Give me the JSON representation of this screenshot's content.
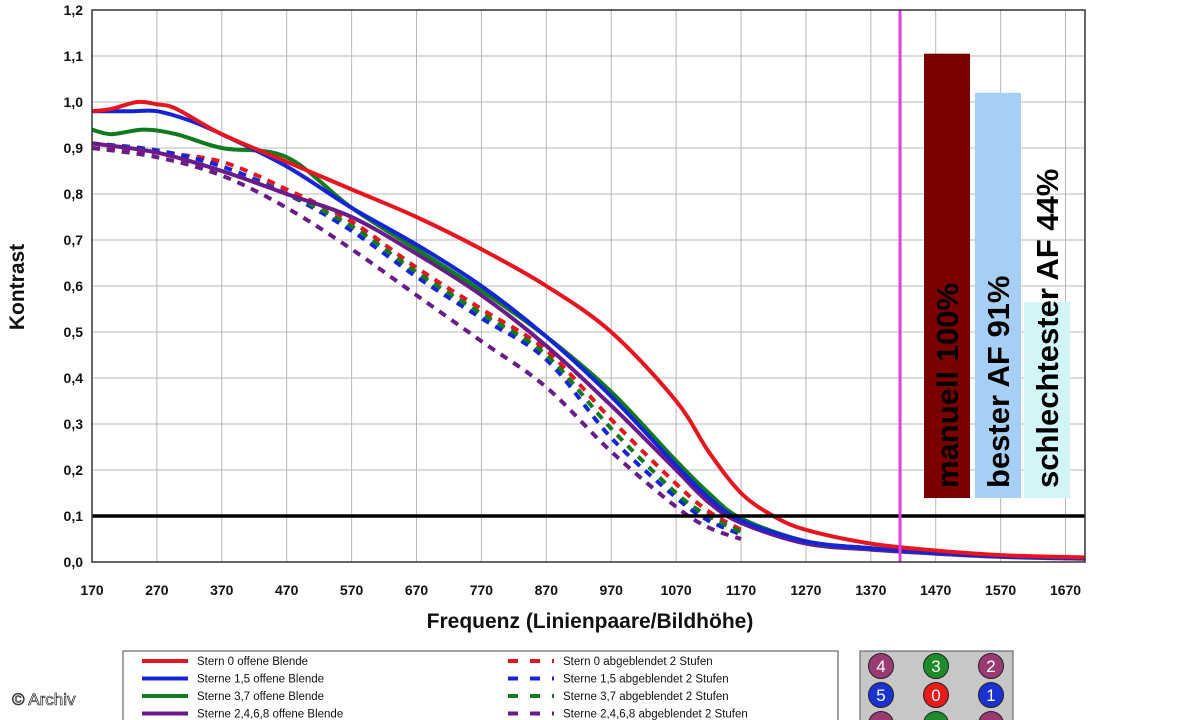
{
  "chart_data": {
    "type": "line",
    "xlabel": "Frequenz (Linienpaare/Bildhöhe)",
    "ylabel": "Kontrast",
    "xlim": [
      170,
      1700
    ],
    "ylim": [
      0,
      1.2
    ],
    "x_ticks": [
      "170",
      "270",
      "370",
      "470",
      "570",
      "670",
      "770",
      "870",
      "970",
      "1070",
      "1170",
      "1270",
      "1370",
      "1470",
      "1570",
      "1670"
    ],
    "y_ticks": [
      "0,0",
      "0,1",
      "0,2",
      "0,3",
      "0,4",
      "0,5",
      "0,6",
      "0,7",
      "0,8",
      "0,9",
      "1,0",
      "1,1",
      "1,2"
    ],
    "grid": true,
    "threshold_line": {
      "y": 0.1,
      "color": "#000000"
    },
    "marker_line": {
      "x": 1415,
      "color": "#e040e0"
    },
    "series": [
      {
        "name": "Stern 0 offene Blende",
        "color": "#e8141e",
        "style": "solid",
        "points": [
          [
            170,
            0.98
          ],
          [
            200,
            0.985
          ],
          [
            240,
            1.0
          ],
          [
            270,
            0.995
          ],
          [
            300,
            0.985
          ],
          [
            370,
            0.93
          ],
          [
            470,
            0.87
          ],
          [
            570,
            0.81
          ],
          [
            670,
            0.75
          ],
          [
            770,
            0.68
          ],
          [
            870,
            0.6
          ],
          [
            970,
            0.5
          ],
          [
            1070,
            0.35
          ],
          [
            1120,
            0.24
          ],
          [
            1170,
            0.15
          ],
          [
            1220,
            0.1
          ],
          [
            1270,
            0.07
          ],
          [
            1370,
            0.04
          ],
          [
            1470,
            0.025
          ],
          [
            1570,
            0.015
          ],
          [
            1700,
            0.01
          ]
        ]
      },
      {
        "name": "Sterne 1,5 offene Blende",
        "color": "#1424d8",
        "style": "solid",
        "points": [
          [
            170,
            0.98
          ],
          [
            230,
            0.98
          ],
          [
            270,
            0.98
          ],
          [
            320,
            0.96
          ],
          [
            370,
            0.93
          ],
          [
            470,
            0.86
          ],
          [
            570,
            0.77
          ],
          [
            670,
            0.69
          ],
          [
            770,
            0.6
          ],
          [
            870,
            0.49
          ],
          [
            970,
            0.36
          ],
          [
            1070,
            0.21
          ],
          [
            1120,
            0.14
          ],
          [
            1170,
            0.09
          ],
          [
            1270,
            0.045
          ],
          [
            1370,
            0.03
          ],
          [
            1470,
            0.02
          ],
          [
            1570,
            0.012
          ],
          [
            1700,
            0.008
          ]
        ]
      },
      {
        "name": "Sterne 3,7 offene Blende",
        "color": "#0f7a1e",
        "style": "solid",
        "points": [
          [
            170,
            0.94
          ],
          [
            200,
            0.93
          ],
          [
            250,
            0.94
          ],
          [
            300,
            0.93
          ],
          [
            370,
            0.9
          ],
          [
            470,
            0.88
          ],
          [
            570,
            0.77
          ],
          [
            670,
            0.68
          ],
          [
            770,
            0.59
          ],
          [
            870,
            0.49
          ],
          [
            970,
            0.37
          ],
          [
            1070,
            0.22
          ],
          [
            1120,
            0.15
          ],
          [
            1170,
            0.095
          ],
          [
            1270,
            0.045
          ],
          [
            1370,
            0.03
          ],
          [
            1470,
            0.02
          ],
          [
            1570,
            0.012
          ],
          [
            1700,
            0.008
          ]
        ]
      },
      {
        "name": "Sterne 2,4,6,8 offene Blende",
        "color": "#6a1a8a",
        "style": "solid",
        "points": [
          [
            170,
            0.91
          ],
          [
            270,
            0.89
          ],
          [
            370,
            0.85
          ],
          [
            470,
            0.8
          ],
          [
            570,
            0.75
          ],
          [
            670,
            0.67
          ],
          [
            770,
            0.58
          ],
          [
            870,
            0.47
          ],
          [
            970,
            0.34
          ],
          [
            1070,
            0.2
          ],
          [
            1120,
            0.13
          ],
          [
            1170,
            0.085
          ],
          [
            1270,
            0.04
          ],
          [
            1370,
            0.027
          ],
          [
            1470,
            0.018
          ],
          [
            1570,
            0.011
          ],
          [
            1700,
            0.007
          ]
        ]
      },
      {
        "name": "Stern 0 abgeblendet 2 Stufen",
        "color": "#e8141e",
        "style": "dashed",
        "points": [
          [
            170,
            0.9
          ],
          [
            270,
            0.89
          ],
          [
            370,
            0.87
          ],
          [
            470,
            0.81
          ],
          [
            570,
            0.74
          ],
          [
            670,
            0.64
          ],
          [
            770,
            0.55
          ],
          [
            870,
            0.46
          ],
          [
            970,
            0.31
          ],
          [
            1070,
            0.17
          ],
          [
            1120,
            0.11
          ],
          [
            1170,
            0.07
          ]
        ]
      },
      {
        "name": "Sterne 1,5 abgeblendet 2 Stufen",
        "color": "#1424d8",
        "style": "dashed",
        "points": [
          [
            170,
            0.91
          ],
          [
            270,
            0.895
          ],
          [
            370,
            0.86
          ],
          [
            470,
            0.8
          ],
          [
            570,
            0.72
          ],
          [
            670,
            0.62
          ],
          [
            770,
            0.53
          ],
          [
            870,
            0.44
          ],
          [
            970,
            0.27
          ],
          [
            1070,
            0.14
          ],
          [
            1120,
            0.09
          ],
          [
            1170,
            0.06
          ]
        ]
      },
      {
        "name": "Sterne 3,7 abgeblendet 2 Stufen",
        "color": "#0f7a1e",
        "style": "dashed",
        "points": [
          [
            170,
            0.91
          ],
          [
            270,
            0.89
          ],
          [
            370,
            0.85
          ],
          [
            470,
            0.8
          ],
          [
            570,
            0.73
          ],
          [
            670,
            0.63
          ],
          [
            770,
            0.54
          ],
          [
            870,
            0.45
          ],
          [
            970,
            0.29
          ],
          [
            1070,
            0.15
          ],
          [
            1120,
            0.1
          ],
          [
            1170,
            0.065
          ]
        ]
      },
      {
        "name": "Sterne 2,4,6,8 abgeblendet 2 Stufen",
        "color": "#6a1a8a",
        "style": "dashed",
        "points": [
          [
            170,
            0.9
          ],
          [
            270,
            0.88
          ],
          [
            370,
            0.84
          ],
          [
            470,
            0.77
          ],
          [
            570,
            0.68
          ],
          [
            670,
            0.58
          ],
          [
            770,
            0.48
          ],
          [
            870,
            0.38
          ],
          [
            970,
            0.24
          ],
          [
            1070,
            0.12
          ],
          [
            1120,
            0.075
          ],
          [
            1170,
            0.05
          ]
        ]
      }
    ],
    "bars": [
      {
        "label": "manuell 100%",
        "value": 1.105,
        "color": "#7a0000"
      },
      {
        "label": "bester AF 91%",
        "value": 1.02,
        "color": "#a6cff5"
      },
      {
        "label": "schlechtester AF 44%",
        "value": 0.565,
        "color": "#d2f6f8"
      }
    ]
  },
  "legend": {
    "entries": [
      {
        "label": "Stern 0 offene Blende",
        "color": "#e8141e",
        "style": "solid"
      },
      {
        "label": "Sterne 1,5 offene Blende",
        "color": "#1424d8",
        "style": "solid"
      },
      {
        "label": "Sterne 3,7 offene Blende",
        "color": "#0f7a1e",
        "style": "solid"
      },
      {
        "label": "Sterne 2,4,6,8 offene Blende",
        "color": "#6a1a8a",
        "style": "solid"
      },
      {
        "label": "Stern 0 abgeblendet 2 Stufen",
        "color": "#e8141e",
        "style": "dashed"
      },
      {
        "label": "Sterne 1,5 abgeblendet 2 Stufen",
        "color": "#1424d8",
        "style": "dashed"
      },
      {
        "label": "Sterne 3,7 abgeblendet 2 Stufen",
        "color": "#0f7a1e",
        "style": "dashed"
      },
      {
        "label": "Sterne 2,4,6,8 abgeblendet 2 Stufen",
        "color": "#6a1a8a",
        "style": "dashed"
      }
    ]
  },
  "star_grid": {
    "cells": [
      {
        "num": "4",
        "color": "#9a3a73"
      },
      {
        "num": "3",
        "color": "#1f8a2a"
      },
      {
        "num": "2",
        "color": "#9a3a73"
      },
      {
        "num": "5",
        "color": "#1a32d0"
      },
      {
        "num": "0",
        "color": "#e81a1a"
      },
      {
        "num": "1",
        "color": "#1a32d0"
      },
      {
        "num": "",
        "color": "#9a3a73"
      },
      {
        "num": "",
        "color": "#1f8a2a"
      },
      {
        "num": "",
        "color": "#9a3a73"
      }
    ]
  },
  "credit": "© Archiv"
}
